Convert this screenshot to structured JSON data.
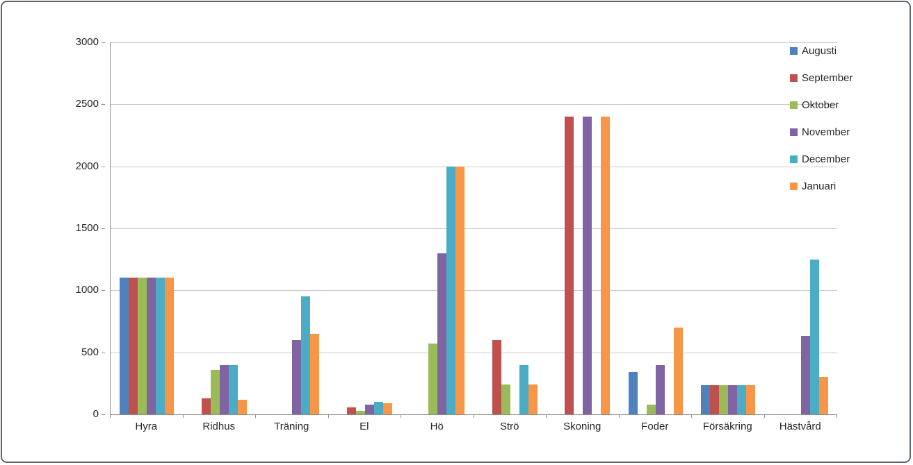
{
  "chart_data": {
    "type": "bar",
    "title": "",
    "xlabel": "",
    "ylabel": "",
    "categories": [
      "Hyra",
      "Ridhus",
      "Träning",
      "El",
      "Hö",
      "Strö",
      "Skoning",
      "Foder",
      "Försäkring",
      "Hästvård"
    ],
    "series": [
      {
        "name": "Augusti",
        "color": "#4F81BD",
        "values": [
          1100,
          0,
          0,
          0,
          0,
          0,
          0,
          340,
          235,
          0
        ]
      },
      {
        "name": "September",
        "color": "#C0504D",
        "values": [
          1100,
          130,
          0,
          55,
          0,
          600,
          2400,
          0,
          235,
          0
        ]
      },
      {
        "name": "Oktober",
        "color": "#9BBB59",
        "values": [
          1100,
          360,
          0,
          30,
          570,
          240,
          0,
          80,
          235,
          0
        ]
      },
      {
        "name": "November",
        "color": "#8064A2",
        "values": [
          1100,
          400,
          600,
          80,
          1300,
          0,
          2400,
          400,
          235,
          630
        ]
      },
      {
        "name": "December",
        "color": "#4BACC6",
        "values": [
          1100,
          400,
          950,
          100,
          2000,
          400,
          0,
          0,
          235,
          1250
        ]
      },
      {
        "name": "Januari",
        "color": "#F79646",
        "values": [
          1100,
          120,
          650,
          90,
          2000,
          240,
          2400,
          700,
          235,
          300
        ]
      }
    ],
    "ylim": [
      0,
      3000
    ],
    "yticks": [
      0,
      500,
      1000,
      1500,
      2000,
      2500,
      3000
    ],
    "grid": true,
    "legend_position": "top-right",
    "axis_color": "#8c8c8c",
    "gridline_color": "#c9c9c9",
    "frame_border_color": "#5b6670",
    "background_color": "#ffffff"
  }
}
